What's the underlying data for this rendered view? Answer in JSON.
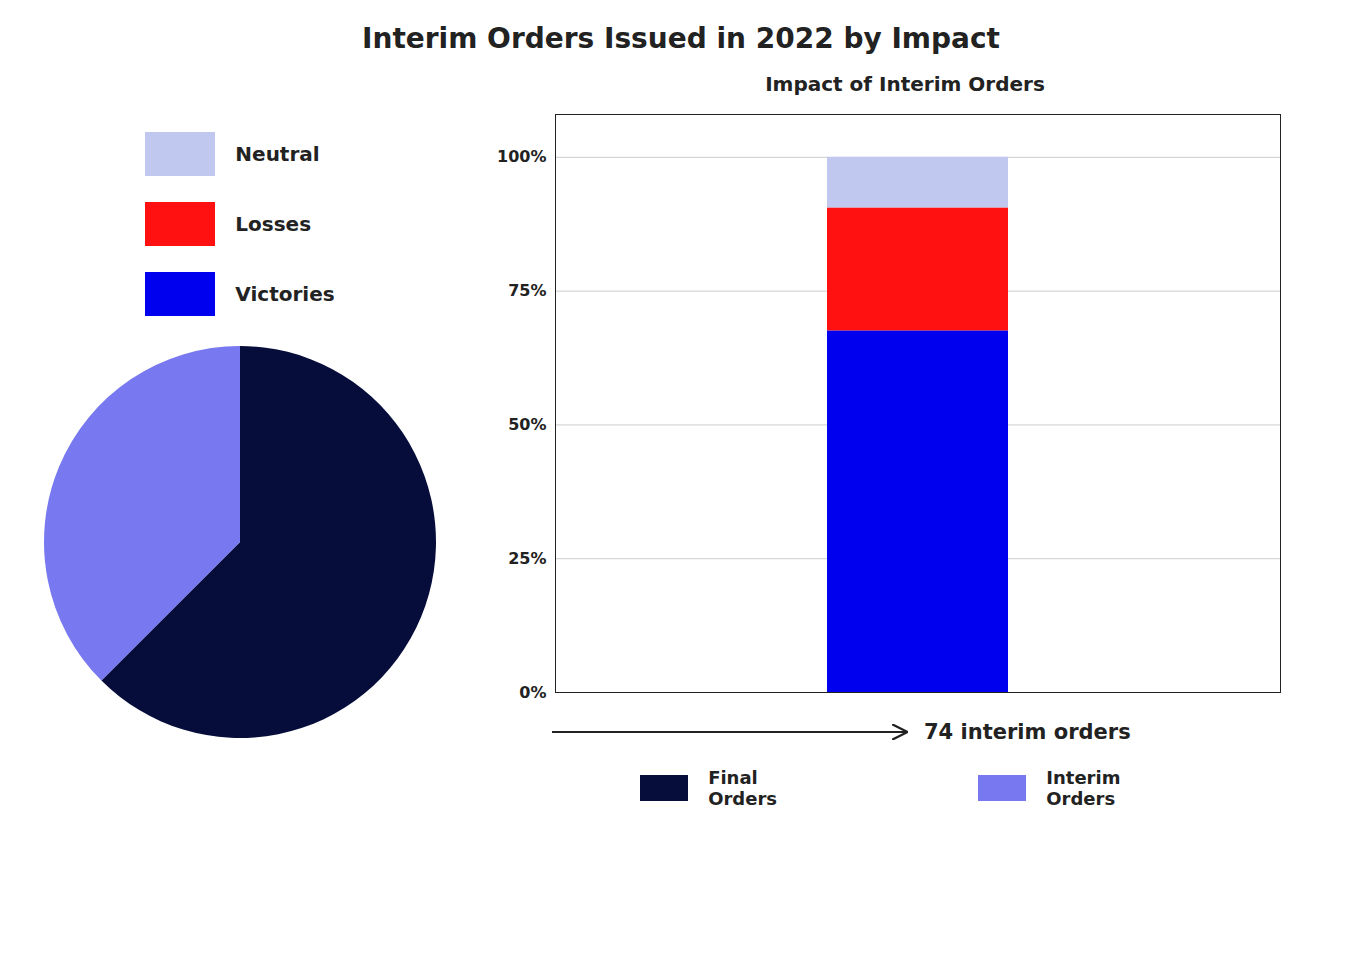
{
  "chart_data": [
    {
      "type": "bar",
      "title": "Interim Orders Issued in 2022 by Impact",
      "subtitle": "Impact of Interim Orders",
      "categories": [
        null
      ],
      "series": [
        {
          "name": "Victories",
          "color": "#0000ee",
          "values": [
            0.6757
          ]
        },
        {
          "name": "Losses",
          "color": "#ff1111",
          "values": [
            0.2297
          ]
        },
        {
          "name": "Neutral",
          "color": "#c0c8f0",
          "values": [
            0.0946
          ]
        }
      ],
      "stacked": true,
      "ylim": [
        0,
        1.08
      ],
      "yticks": [
        {
          "value": 0,
          "label": "0%"
        },
        {
          "value": 0.25,
          "label": "25%"
        },
        {
          "value": 0.5,
          "label": "50%"
        },
        {
          "value": 0.75,
          "label": "75%"
        },
        {
          "value": 1.0,
          "label": "100%"
        }
      ],
      "grid": true,
      "tick_labels": "y",
      "legend": "left",
      "annotations": [
        "74 interim orders"
      ]
    },
    {
      "type": "pie",
      "categories": [
        "Final Orders",
        "Interim Orders"
      ],
      "values": [
        0.625,
        0.375
      ],
      "colors": [
        "#060d3a",
        "#7878f0"
      ],
      "legend": "bottom"
    }
  ]
}
